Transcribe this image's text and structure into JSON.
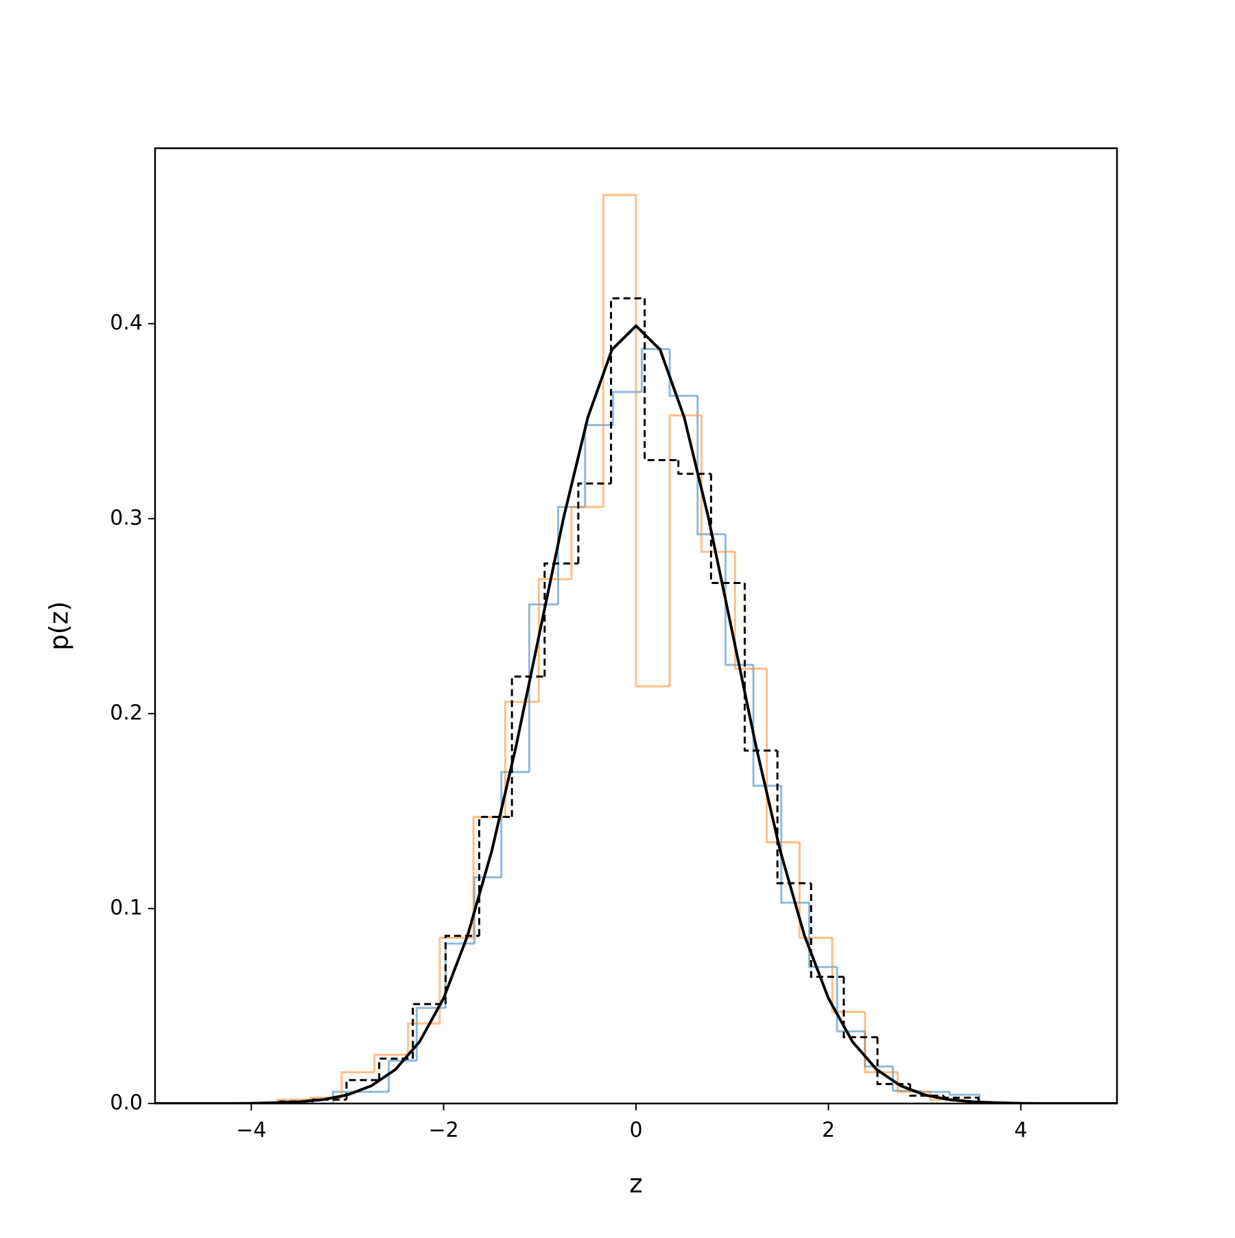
{
  "chart_data": {
    "type": "histogram",
    "xlabel": "z",
    "ylabel": "p(z)",
    "xlim": [
      -5,
      5
    ],
    "ylim": [
      0,
      0.49
    ],
    "xticks": [
      {
        "value": -4,
        "label": "−4"
      },
      {
        "value": -2,
        "label": "−2"
      },
      0,
      2,
      4
    ],
    "yticks": [
      {
        "value": 0,
        "label": "0.0"
      },
      0.1,
      0.2,
      0.3,
      0.4
    ],
    "series": [
      {
        "type": "histogram",
        "color": "#1f77b4",
        "opacity": 0.5,
        "linestyle": "solid",
        "bins": [
          -3.15,
          -2.86,
          -2.57,
          -2.28,
          -1.98,
          -1.68,
          -1.4,
          -1.11,
          -0.81,
          -0.53,
          -0.24,
          0.06,
          0.35,
          0.64,
          0.93,
          1.22,
          1.51,
          1.8,
          2.09,
          2.38,
          2.67,
          2.97,
          3.26,
          3.57
        ],
        "values": [
          0.006,
          0.006,
          0.022,
          0.049,
          0.082,
          0.116,
          0.17,
          0.256,
          0.306,
          0.348,
          0.365,
          0.387,
          0.363,
          0.292,
          0.225,
          0.163,
          0.103,
          0.07,
          0.037,
          0.019,
          0.0065,
          0.006,
          0.0045
        ]
      },
      {
        "type": "histogram",
        "color": "#ff7f0e",
        "opacity": 0.5,
        "linestyle": "solid",
        "bins": [
          -3.73,
          -3.39,
          -3.06,
          -2.72,
          -2.37,
          -2.04,
          -1.69,
          -1.36,
          -1.01,
          -0.67,
          -0.34,
          0,
          0.35,
          0.68,
          1.03,
          1.36,
          1.7,
          2.04,
          2.38,
          2.72,
          3.06,
          3.4
        ],
        "values": [
          0.002,
          0.003,
          0.016,
          0.025,
          0.041,
          0.085,
          0.147,
          0.206,
          0.269,
          0.306,
          0.466,
          0.214,
          0.353,
          0.283,
          0.223,
          0.134,
          0.085,
          0.047,
          0.016,
          0.006,
          0.002
        ]
      },
      {
        "type": "histogram",
        "color": "#000000",
        "opacity": 1,
        "linestyle": "dashed",
        "bins": [
          -3.7,
          -3.36,
          -3.01,
          -2.67,
          -2.32,
          -1.98,
          -1.63,
          -1.29,
          -0.95,
          -0.6,
          -0.26,
          0.09,
          0.44,
          0.78,
          1.13,
          1.47,
          1.82,
          2.16,
          2.51,
          2.85,
          3.2,
          3.56
        ],
        "values": [
          0.001,
          0.002,
          0.012,
          0.023,
          0.051,
          0.086,
          0.147,
          0.219,
          0.277,
          0.318,
          0.413,
          0.33,
          0.323,
          0.267,
          0.181,
          0.113,
          0.065,
          0.034,
          0.01,
          0.004,
          0.003
        ]
      },
      {
        "type": "line",
        "color": "#000000",
        "opacity": 1,
        "linestyle": "solid",
        "x": [
          -5,
          -4.75,
          -4.5,
          -4.25,
          -4,
          -3.75,
          -3.5,
          -3.25,
          -3,
          -2.75,
          -2.5,
          -2.25,
          -2,
          -1.75,
          -1.5,
          -1.25,
          -1,
          -0.75,
          -0.5,
          -0.25,
          0,
          0.25,
          0.5,
          0.75,
          1,
          1.25,
          1.5,
          1.75,
          2,
          2.25,
          2.5,
          2.75,
          3,
          3.25,
          3.5,
          3.75,
          4,
          4.25,
          4.5,
          4.75,
          5
        ],
        "values": [
          0,
          0,
          0,
          0,
          0.0001,
          0.0004,
          0.0009,
          0.002,
          0.0044,
          0.0091,
          0.0175,
          0.0317,
          0.054,
          0.0863,
          0.1295,
          0.1826,
          0.242,
          0.3011,
          0.3521,
          0.3867,
          0.3989,
          0.3867,
          0.3521,
          0.3011,
          0.242,
          0.1826,
          0.1295,
          0.0863,
          0.054,
          0.0317,
          0.0175,
          0.0091,
          0.0044,
          0.002,
          0.0009,
          0.0004,
          0.0001,
          0,
          0,
          0,
          0
        ]
      }
    ]
  }
}
